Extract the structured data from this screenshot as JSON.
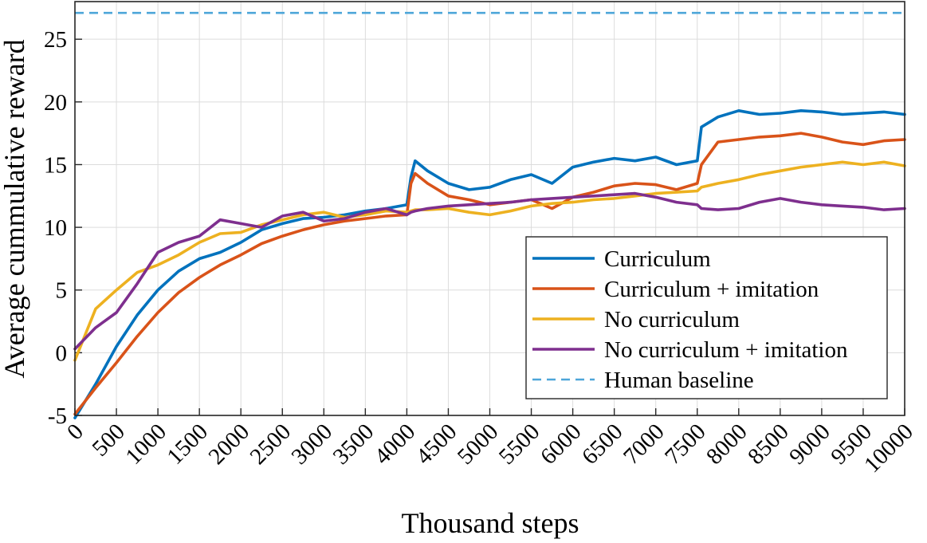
{
  "chart_data": {
    "type": "line",
    "xlabel": "Thousand steps",
    "ylabel": "Average cummulative reward",
    "xlim": [
      0,
      10000
    ],
    "ylim": [
      -5,
      28
    ],
    "xticks": [
      0,
      500,
      1000,
      1500,
      2000,
      2500,
      3000,
      3500,
      4000,
      4500,
      5000,
      5500,
      6000,
      6500,
      7000,
      7500,
      8000,
      8500,
      9000,
      9500,
      10000
    ],
    "yticks": [
      -5,
      0,
      5,
      10,
      15,
      20,
      25
    ],
    "grid": true,
    "legend_position": "bottom-right",
    "x": [
      0,
      250,
      500,
      750,
      1000,
      1250,
      1500,
      1750,
      2000,
      2250,
      2500,
      2750,
      3000,
      3250,
      3500,
      3750,
      4000,
      4050,
      4100,
      4250,
      4500,
      4750,
      5000,
      5250,
      5500,
      5750,
      6000,
      6250,
      6500,
      6750,
      7000,
      7250,
      7500,
      7550,
      7750,
      8000,
      8250,
      8500,
      8750,
      9000,
      9250,
      9500,
      9750,
      10000
    ],
    "series": [
      {
        "name": "Curriculum",
        "color": "#0072BD",
        "values": [
          -5.2,
          -2.5,
          0.5,
          3.0,
          5.0,
          6.5,
          7.5,
          8.0,
          8.8,
          9.8,
          10.3,
          10.7,
          10.8,
          11.0,
          11.3,
          11.5,
          11.8,
          14.0,
          15.3,
          14.5,
          13.5,
          13.0,
          13.2,
          13.8,
          14.2,
          13.5,
          14.8,
          15.2,
          15.5,
          15.3,
          15.6,
          15.0,
          15.3,
          18.0,
          18.8,
          19.3,
          19.0,
          19.1,
          19.3,
          19.2,
          19.0,
          19.1,
          19.2,
          19.0
        ]
      },
      {
        "name": "Curriculum + imitation",
        "color": "#D95319",
        "values": [
          -4.9,
          -2.8,
          -0.8,
          1.3,
          3.2,
          4.8,
          6.0,
          7.0,
          7.8,
          8.7,
          9.3,
          9.8,
          10.2,
          10.5,
          10.7,
          10.9,
          11.0,
          13.5,
          14.3,
          13.5,
          12.5,
          12.2,
          11.8,
          12.0,
          12.2,
          11.5,
          12.4,
          12.8,
          13.3,
          13.5,
          13.4,
          13.0,
          13.5,
          15.0,
          16.8,
          17.0,
          17.2,
          17.3,
          17.5,
          17.2,
          16.8,
          16.6,
          16.9,
          17.0
        ]
      },
      {
        "name": "No curriculum",
        "color": "#EDB120",
        "values": [
          -0.6,
          3.5,
          5.0,
          6.4,
          7.0,
          7.8,
          8.8,
          9.5,
          9.6,
          10.2,
          10.6,
          11.0,
          11.2,
          10.8,
          11.0,
          11.3,
          11.2,
          11.3,
          11.4,
          11.4,
          11.5,
          11.2,
          11.0,
          11.3,
          11.7,
          11.9,
          12.0,
          12.2,
          12.3,
          12.5,
          12.7,
          12.8,
          12.9,
          13.2,
          13.5,
          13.8,
          14.2,
          14.5,
          14.8,
          15.0,
          15.2,
          15.0,
          15.2,
          14.9
        ]
      },
      {
        "name": "No curriculum + imitation",
        "color": "#7E2F8E",
        "values": [
          0.3,
          2.0,
          3.2,
          5.5,
          8.0,
          8.8,
          9.3,
          10.6,
          10.3,
          10.0,
          10.9,
          11.2,
          10.5,
          10.7,
          11.2,
          11.5,
          11.0,
          11.2,
          11.3,
          11.5,
          11.7,
          11.8,
          11.9,
          12.0,
          12.2,
          12.3,
          12.4,
          12.5,
          12.6,
          12.7,
          12.4,
          12.0,
          11.8,
          11.5,
          11.4,
          11.5,
          12.0,
          12.3,
          12.0,
          11.8,
          11.7,
          11.6,
          11.4,
          11.5
        ]
      }
    ],
    "baseline": {
      "name": "Human baseline",
      "color": "#4DA6D9",
      "value": 27.1
    }
  }
}
